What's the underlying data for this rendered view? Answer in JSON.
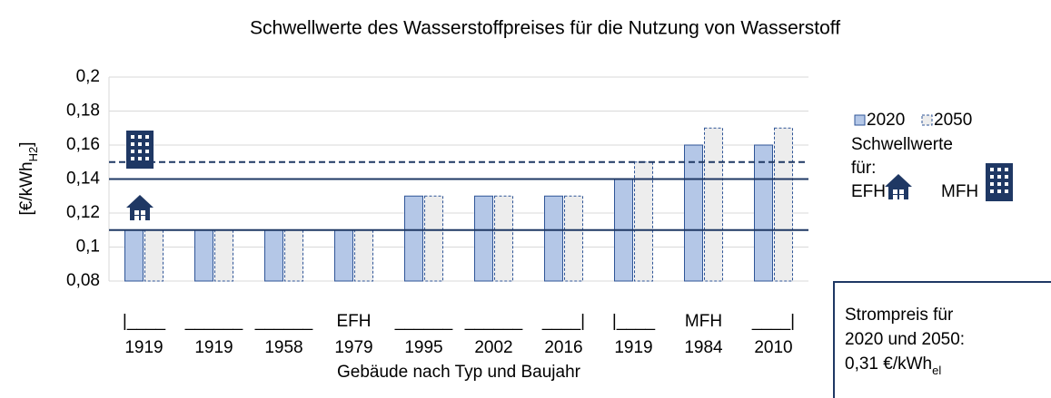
{
  "chart_data": {
    "type": "bar",
    "title": "Schwellwerte des Wasserstoffpreises für die Nutzung von Wasserstoff",
    "ylabel": "[€/kWh",
    "ylabel_sub": "H2",
    "ylabel_end": "]",
    "xlabel": "Gebäude nach Typ und Baujahr",
    "categories": [
      "1919",
      "1919",
      "1958",
      "1979",
      "1995",
      "2002",
      "2016",
      "1919",
      "1984",
      "2010"
    ],
    "category_top_labels": [
      "|____",
      "______",
      "______",
      "EFH",
      "______",
      "______",
      "____|",
      "|____",
      "MFH",
      "____|"
    ],
    "series": [
      {
        "name": "2020",
        "color": "#b4c7e7",
        "border": "#2f5597",
        "border_style": "solid",
        "values": [
          0.11,
          0.11,
          0.11,
          0.11,
          0.13,
          0.13,
          0.13,
          0.14,
          0.16,
          0.16
        ]
      },
      {
        "name": "2050",
        "color": "#ededed",
        "border": "#2f5597",
        "border_style": "dashed",
        "values": [
          0.11,
          0.11,
          0.11,
          0.11,
          0.13,
          0.13,
          0.13,
          0.15,
          0.17,
          0.17
        ]
      }
    ],
    "thresholds": [
      {
        "value": 0.11,
        "style": "solid",
        "color": "#1f3864"
      },
      {
        "value": 0.14,
        "style": "solid",
        "color": "#1f3864"
      },
      {
        "value": 0.15,
        "style": "dashed",
        "color": "#1f3864"
      }
    ],
    "ylim": [
      0.08,
      0.2
    ],
    "yticks": [
      {
        "value": 0.08,
        "label": "0,08"
      },
      {
        "value": 0.1,
        "label": "0,1"
      },
      {
        "value": 0.12,
        "label": "0,12"
      },
      {
        "value": 0.14,
        "label": "0,14"
      },
      {
        "value": 0.16,
        "label": "0,16"
      },
      {
        "value": 0.18,
        "label": "0,18"
      },
      {
        "value": 0.2,
        "label": "0,2"
      }
    ],
    "grid": true,
    "threshold_legend": {
      "title_line1": "Schwellwerte",
      "title_line2": "für:",
      "efh": "EFH",
      "mfh": "MFH"
    },
    "note": {
      "line1": "Strompreis für",
      "line2": "2020 und 2050:",
      "line3": "0,31 €/kWh",
      "line3_sub": "el"
    }
  }
}
